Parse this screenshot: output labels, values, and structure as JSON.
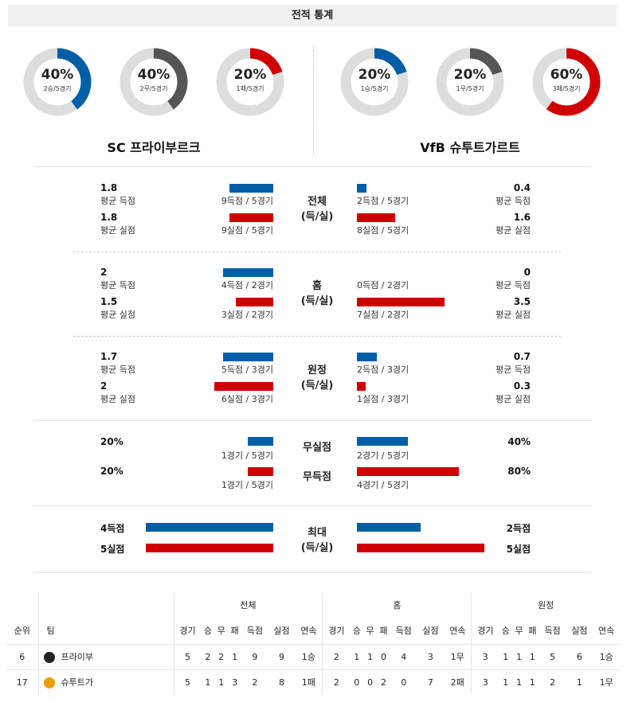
{
  "header": {
    "title": "전적 통계"
  },
  "home_team": {
    "name": "SC 프라이부르크",
    "donuts": [
      {
        "pct": "40%",
        "sub": "2승/5경기",
        "value": 0.4,
        "color": "#005ea6"
      },
      {
        "pct": "40%",
        "sub": "2무/5경기",
        "value": 0.4,
        "color": "#555555"
      },
      {
        "pct": "20%",
        "sub": "1패/5경기",
        "value": 0.2,
        "color": "#d10000"
      }
    ]
  },
  "away_team": {
    "name": "VfB 슈투트가르트",
    "donuts": [
      {
        "pct": "20%",
        "sub": "1승/5경기",
        "value": 0.2,
        "color": "#005ea6"
      },
      {
        "pct": "20%",
        "sub": "1무/5경기",
        "value": 0.2,
        "color": "#555555"
      },
      {
        "pct": "60%",
        "sub": "3패/5경기",
        "value": 0.6,
        "color": "#d10000"
      }
    ]
  },
  "colors": {
    "scored": "#005ea6",
    "conceded": "#d10000",
    "draw": "#555555",
    "track": "#dddddd"
  },
  "sections": [
    {
      "title_line1": "전체",
      "title_line2": "(득/실)",
      "rows": [
        {
          "home_value": "1.8",
          "home_label": "평균 득점",
          "home_caption": "9득점 / 5경기",
          "home_fill": 0.5,
          "away_value": "0.4",
          "away_label": "평균 득점",
          "away_caption": "2득점 / 5경기",
          "away_fill": 0.11,
          "color": "blue"
        },
        {
          "home_value": "1.8",
          "home_label": "평균 실점",
          "home_caption": "9실점 / 5경기",
          "home_fill": 0.5,
          "away_value": "1.6",
          "away_label": "평균 실점",
          "away_caption": "8실점 / 5경기",
          "away_fill": 0.44,
          "color": "red"
        }
      ]
    },
    {
      "title_line1": "홈",
      "title_line2": "(득/실)",
      "rows": [
        {
          "home_value": "2",
          "home_label": "평균 득점",
          "home_caption": "4득점 / 2경기",
          "home_fill": 0.57,
          "away_value": "0",
          "away_label": "평균 득점",
          "away_caption": "0득점 / 2경기",
          "away_fill": 0.0,
          "color": "blue"
        },
        {
          "home_value": "1.5",
          "home_label": "평균 실점",
          "home_caption": "3실점 / 2경기",
          "home_fill": 0.43,
          "away_value": "3.5",
          "away_label": "평균 실점",
          "away_caption": "7실점 / 2경기",
          "away_fill": 1.0,
          "color": "red"
        }
      ]
    },
    {
      "title_line1": "원정",
      "title_line2": "(득/실)",
      "rows": [
        {
          "home_value": "1.7",
          "home_label": "평균 득점",
          "home_caption": "5득점 / 3경기",
          "home_fill": 0.57,
          "away_value": "0.7",
          "away_label": "평균 득점",
          "away_caption": "2득점 / 3경기",
          "away_fill": 0.23,
          "color": "blue"
        },
        {
          "home_value": "2",
          "home_label": "평균 실점",
          "home_caption": "6실점 / 3경기",
          "home_fill": 0.67,
          "away_value": "0.3",
          "away_label": "평균 실점",
          "away_caption": "1실점 / 3경기",
          "away_fill": 0.1,
          "color": "red"
        }
      ]
    }
  ],
  "clean_sheet": {
    "label1": "무실점",
    "label2": "무득점",
    "home_clean": "20%",
    "home_clean_caption": "1경기 / 5경기",
    "home_clean_fill": 0.2,
    "away_clean": "40%",
    "away_clean_caption": "2경기 / 5경기",
    "away_clean_fill": 0.4,
    "home_noscore": "20%",
    "home_noscore_caption": "1경기 / 5경기",
    "home_noscore_fill": 0.2,
    "away_noscore": "80%",
    "away_noscore_caption": "4경기 / 5경기",
    "away_noscore_fill": 0.8
  },
  "max_stats": {
    "title_line1": "최대",
    "title_line2": "(득/실)",
    "home_scored": "4득점",
    "home_scored_fill": 1.0,
    "away_scored": "2득점",
    "away_scored_fill": 0.5,
    "home_conceded": "5실점",
    "home_conceded_fill": 1.0,
    "away_conceded": "5실점",
    "away_conceded_fill": 1.0
  },
  "standings": {
    "group_headers": [
      "전체",
      "홈",
      "원정"
    ],
    "col_rank": "순위",
    "col_team": "팀",
    "sub_headers": [
      "경기",
      "승",
      "무",
      "패",
      "득점",
      "실점",
      "연속"
    ],
    "rows": [
      {
        "rank": "6",
        "team": "프라이부",
        "crest_color": "#222222",
        "total": [
          "5",
          "2",
          "2",
          "1",
          "9",
          "9",
          "1승"
        ],
        "home": [
          "2",
          "1",
          "1",
          "0",
          "4",
          "3",
          "1무"
        ],
        "away": [
          "3",
          "1",
          "1",
          "1",
          "5",
          "6",
          "1승"
        ]
      },
      {
        "rank": "17",
        "team": "슈투트가",
        "crest_color": "#e8a000",
        "total": [
          "5",
          "1",
          "1",
          "3",
          "2",
          "8",
          "1패"
        ],
        "home": [
          "2",
          "0",
          "0",
          "2",
          "0",
          "7",
          "2패"
        ],
        "away": [
          "3",
          "1",
          "1",
          "1",
          "2",
          "1",
          "1무"
        ]
      }
    ]
  }
}
